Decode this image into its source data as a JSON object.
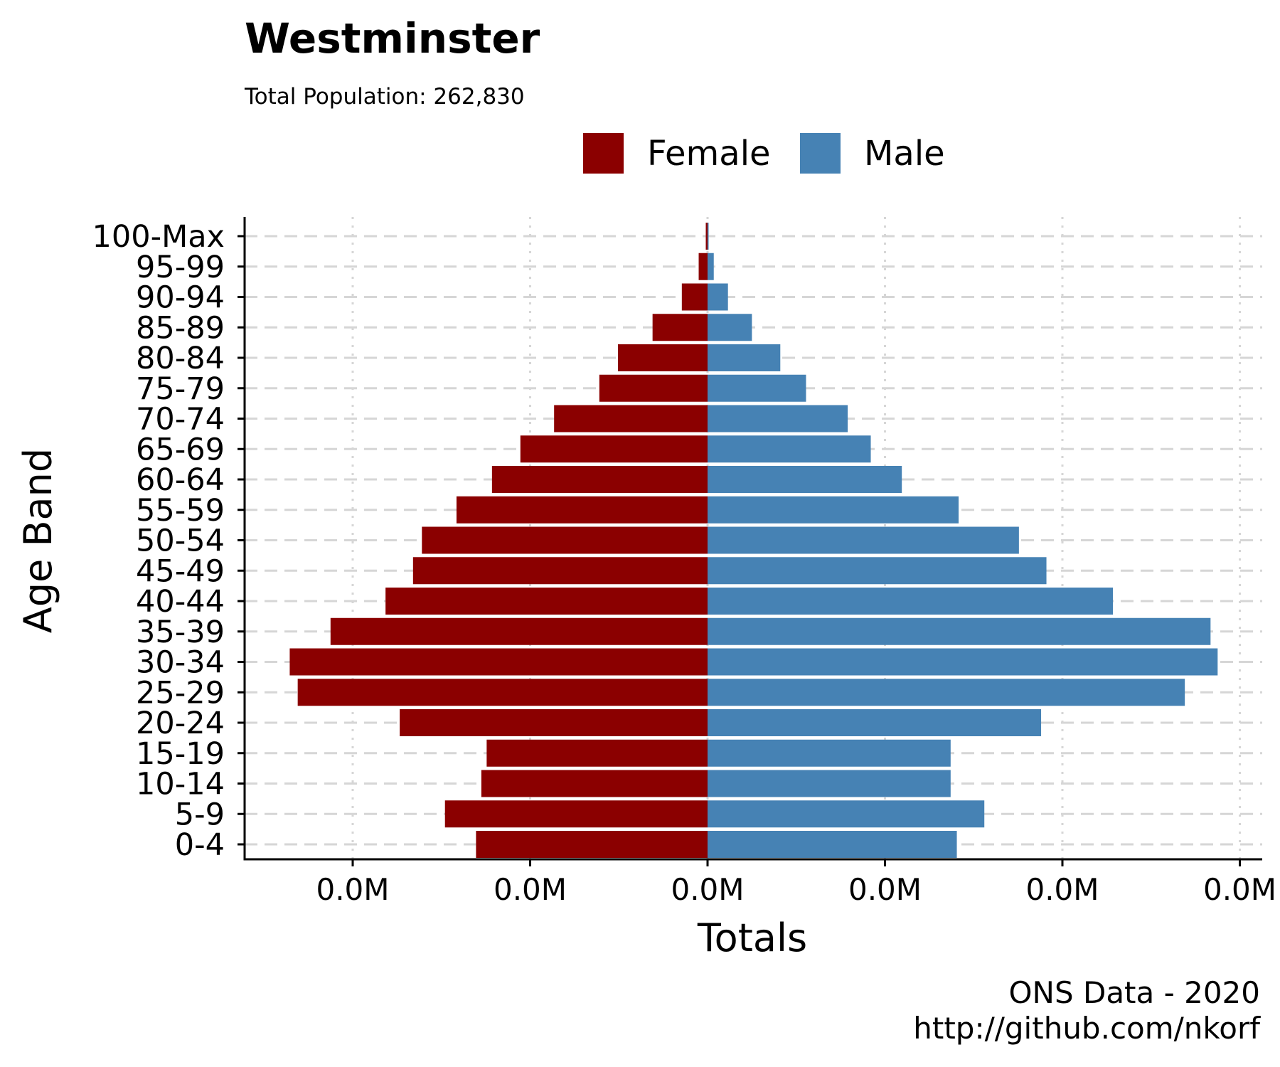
{
  "chart_data": {
    "type": "bar",
    "orientation": "horizontal",
    "layout": "population-pyramid",
    "title": "Westminster",
    "subtitle": "Total Population:  262,830",
    "xlabel": "Totals",
    "ylabel": "Age Band",
    "caption_lines": [
      "ONS Data - 2020",
      "http://github.com/nkorf"
    ],
    "x_tick_values": [
      -2000,
      -1000,
      0,
      1000,
      2000,
      3000
    ],
    "x_tick_labels": [
      "0.0M",
      "0.0M",
      "0.0M",
      "0.0M",
      "0.0M",
      "0.0M"
    ],
    "xlim": [
      -2600,
      3100
    ],
    "legend_position": "top",
    "grid": {
      "x": "dotted",
      "y": "dashed"
    },
    "categories": [
      "100-Max",
      "95-99",
      "90-94",
      "85-89",
      "80-84",
      "75-79",
      "70-74",
      "65-69",
      "60-64",
      "55-59",
      "50-54",
      "45-49",
      "40-44",
      "35-39",
      "30-34",
      "25-29",
      "20-24",
      "15-19",
      "10-14",
      "5-9",
      "0-4"
    ],
    "series": [
      {
        "name": "Female",
        "color": "#8B0000",
        "values": [
          -10,
          -50,
          -145,
          -310,
          -505,
          -610,
          -865,
          -1055,
          -1215,
          -1415,
          -1610,
          -1660,
          -1815,
          -2125,
          -2355,
          -2310,
          -1735,
          -1245,
          -1275,
          -1480,
          -1305
        ]
      },
      {
        "name": "Male",
        "color": "#4682B4",
        "values": [
          2,
          35,
          115,
          250,
          410,
          555,
          790,
          920,
          1095,
          1415,
          1755,
          1910,
          2285,
          2835,
          2875,
          2690,
          1880,
          1370,
          1370,
          1560,
          1405
        ]
      }
    ]
  }
}
